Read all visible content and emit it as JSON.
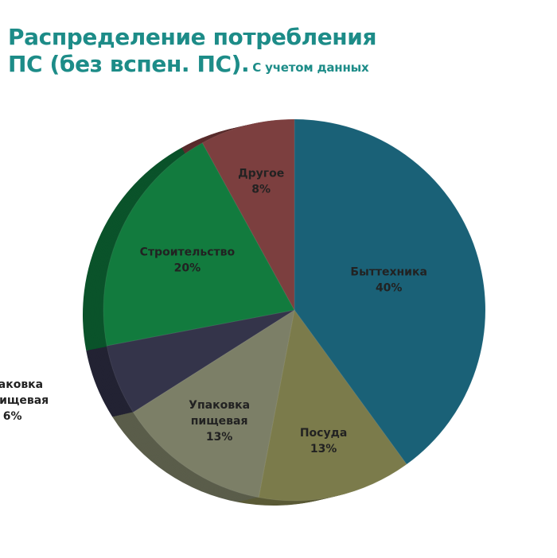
{
  "title_line1": "Распределение потребления",
  "title_line2": "ПС (без вспен. ПС).",
  "subtitle": "С учетом данных",
  "chart_data": {
    "type": "pie",
    "style": "3d",
    "slices": [
      {
        "label": [
          "Быттехника"
        ],
        "value": 40,
        "value_label": "40%",
        "color": "#1a6177",
        "side_color": "#12465a"
      },
      {
        "label": [
          "Посуда"
        ],
        "value": 13,
        "value_label": "13%",
        "color": "#7b7b4b",
        "side_color": "#5a5a36"
      },
      {
        "label": [
          "Упаковка",
          "пищевая"
        ],
        "value": 13,
        "value_label": "13%",
        "color": "#7c7f67",
        "side_color": "#5a5d4a"
      },
      {
        "label": [
          "Упаковка",
          "непищевая"
        ],
        "value": 6,
        "value_label": "6%",
        "color": "#34344a",
        "side_color": "#222233"
      },
      {
        "label": [
          "Строительство"
        ],
        "value": 20,
        "value_label": "20%",
        "color": "#127b3e",
        "side_color": "#0a532a"
      },
      {
        "label": [
          "Другое"
        ],
        "value": 8,
        "value_label": "8%",
        "color": "#7c3f3f",
        "side_color": "#592c2c"
      }
    ]
  }
}
